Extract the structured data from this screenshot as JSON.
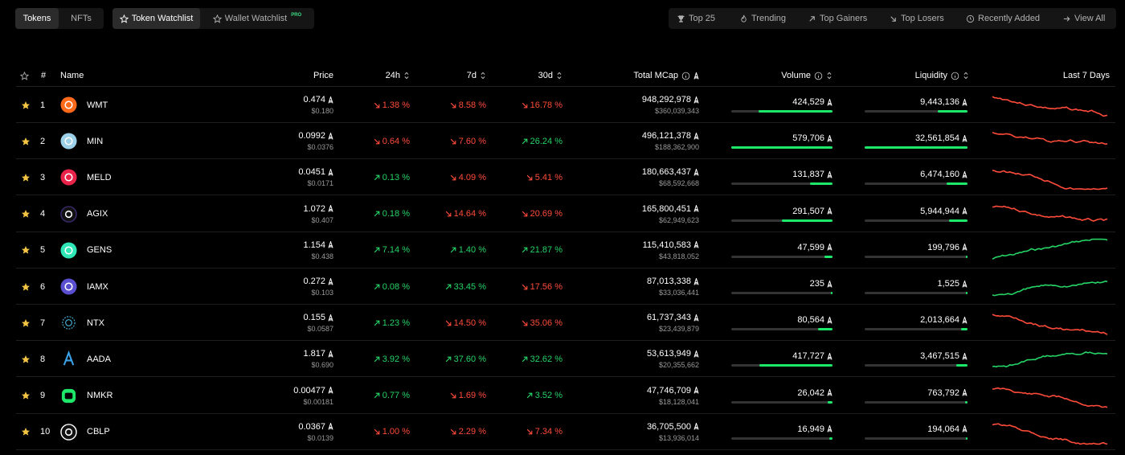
{
  "nav": {
    "tabs": [
      "Tokens",
      "NFTs"
    ],
    "watch_tabs": [
      "Token Watchlist",
      "Wallet Watchlist"
    ],
    "pro_badge": "PRO",
    "filters": [
      "Top 25",
      "Trending",
      "Top Gainers",
      "Top Losers",
      "Recently Added",
      "View All"
    ]
  },
  "table": {
    "headers": {
      "rank": "#",
      "name": "Name",
      "price": "Price",
      "d24": "24h",
      "d7": "7d",
      "d30": "30d",
      "mcap": "Total MCap",
      "volume": "Volume",
      "liquidity": "Liquidity",
      "last7": "Last 7 Days"
    },
    "colors": {
      "up": "#25d366",
      "down": "#ff4b3a",
      "bar": "#1ee86a",
      "star": "#f4c542"
    },
    "rows": [
      {
        "rank": "1",
        "symbol": "WMT",
        "price": "0.474",
        "price_usd": "$0.180",
        "d24": "1.38 %",
        "d24_dir": "down",
        "d7": "8.58 %",
        "d7_dir": "down",
        "d30": "16.78 %",
        "d30_dir": "down",
        "mcap": "948,292,978",
        "mcap_usd": "$360,039,343",
        "volume": "424,529",
        "volume_level": 0.73,
        "liquidity": "9,443,136",
        "liquidity_level": 0.29,
        "trend": "down",
        "logo_color": "#ff6a1a",
        "logo_icon": "wmt-logo"
      },
      {
        "rank": "2",
        "symbol": "MIN",
        "price": "0.0992",
        "price_usd": "$0.0376",
        "d24": "0.64 %",
        "d24_dir": "down",
        "d7": "7.60 %",
        "d7_dir": "down",
        "d30": "26.24 %",
        "d30_dir": "up",
        "mcap": "496,121,378",
        "mcap_usd": "$188,362,900",
        "volume": "579,706",
        "volume_level": 1.0,
        "liquidity": "32,561,854",
        "liquidity_level": 1.0,
        "trend": "down",
        "logo_color": "#9bd0e8",
        "logo_icon": "min-logo"
      },
      {
        "rank": "3",
        "symbol": "MELD",
        "price": "0.0451",
        "price_usd": "$0.0171",
        "d24": "0.13 %",
        "d24_dir": "up",
        "d7": "4.09 %",
        "d7_dir": "down",
        "d30": "5.41 %",
        "d30_dir": "down",
        "mcap": "180,663,437",
        "mcap_usd": "$68,592,668",
        "volume": "131,837",
        "volume_level": 0.22,
        "liquidity": "6,474,160",
        "liquidity_level": 0.2,
        "trend": "down",
        "logo_color": "#e8234a",
        "logo_icon": "meld-logo"
      },
      {
        "rank": "4",
        "symbol": "AGIX",
        "price": "1.072",
        "price_usd": "$0.407",
        "d24": "0.18 %",
        "d24_dir": "up",
        "d7": "14.64 %",
        "d7_dir": "down",
        "d30": "20.69 %",
        "d30_dir": "down",
        "mcap": "165,800,451",
        "mcap_usd": "$62,949,623",
        "volume": "291,507",
        "volume_level": 0.5,
        "liquidity": "5,944,944",
        "liquidity_level": 0.18,
        "trend": "down",
        "logo_color": "#3a2a6e",
        "logo_icon": "agix-logo"
      },
      {
        "rank": "5",
        "symbol": "GENS",
        "price": "1.154",
        "price_usd": "$0.438",
        "d24": "7.14 %",
        "d24_dir": "up",
        "d7": "1.40 %",
        "d7_dir": "up",
        "d30": "21.87 %",
        "d30_dir": "up",
        "mcap": "115,410,583",
        "mcap_usd": "$43,818,052",
        "volume": "47,599",
        "volume_level": 0.08,
        "liquidity": "199,796",
        "liquidity_level": 0.01,
        "trend": "up",
        "logo_color": "#2ee6b6",
        "logo_icon": "gens-logo"
      },
      {
        "rank": "6",
        "symbol": "IAMX",
        "price": "0.272",
        "price_usd": "$0.103",
        "d24": "0.08 %",
        "d24_dir": "up",
        "d7": "33.45 %",
        "d7_dir": "up",
        "d30": "17.56 %",
        "d30_dir": "down",
        "mcap": "87,013,338",
        "mcap_usd": "$33,036,441",
        "volume": "235",
        "volume_level": 0.0,
        "liquidity": "1,525",
        "liquidity_level": 0.0,
        "trend": "up",
        "logo_color": "#5a4fd0",
        "logo_icon": "iamx-logo"
      },
      {
        "rank": "7",
        "symbol": "NTX",
        "price": "0.155",
        "price_usd": "$0.0587",
        "d24": "1.23 %",
        "d24_dir": "up",
        "d7": "14.50 %",
        "d7_dir": "down",
        "d30": "35.06 %",
        "d30_dir": "down",
        "mcap": "61,737,343",
        "mcap_usd": "$23,439,879",
        "volume": "80,564",
        "volume_level": 0.14,
        "liquidity": "2,013,664",
        "liquidity_level": 0.06,
        "trend": "down",
        "logo_color": "#4ab0d8",
        "logo_icon": "ntx-logo"
      },
      {
        "rank": "8",
        "symbol": "AADA",
        "price": "1.817",
        "price_usd": "$0.690",
        "d24": "3.92 %",
        "d24_dir": "up",
        "d7": "37.60 %",
        "d7_dir": "up",
        "d30": "32.62 %",
        "d30_dir": "up",
        "mcap": "53,613,949",
        "mcap_usd": "$20,355,662",
        "volume": "417,727",
        "volume_level": 0.72,
        "liquidity": "3,467,515",
        "liquidity_level": 0.11,
        "trend": "up",
        "logo_color": "#3aa0e8",
        "logo_icon": "aada-logo"
      },
      {
        "rank": "9",
        "symbol": "NMKR",
        "price": "0.00477",
        "price_usd": "$0.00181",
        "d24": "0.77 %",
        "d24_dir": "up",
        "d7": "1.69 %",
        "d7_dir": "down",
        "d30": "3.52 %",
        "d30_dir": "up",
        "mcap": "47,746,709",
        "mcap_usd": "$18,128,041",
        "volume": "26,042",
        "volume_level": 0.045,
        "liquidity": "763,792",
        "liquidity_level": 0.023,
        "trend": "down",
        "logo_color": "#1ee86a",
        "logo_icon": "nmkr-logo"
      },
      {
        "rank": "10",
        "symbol": "CBLP",
        "price": "0.0367",
        "price_usd": "$0.0139",
        "d24": "1.00 %",
        "d24_dir": "down",
        "d7": "2.29 %",
        "d7_dir": "down",
        "d30": "7.34 %",
        "d30_dir": "down",
        "mcap": "36,705,500",
        "mcap_usd": "$13,936,014",
        "volume": "16,949",
        "volume_level": 0.03,
        "liquidity": "194,064",
        "liquidity_level": 0.006,
        "trend": "down",
        "logo_color": "#ffffff",
        "logo_icon": "cblp-logo"
      }
    ]
  }
}
